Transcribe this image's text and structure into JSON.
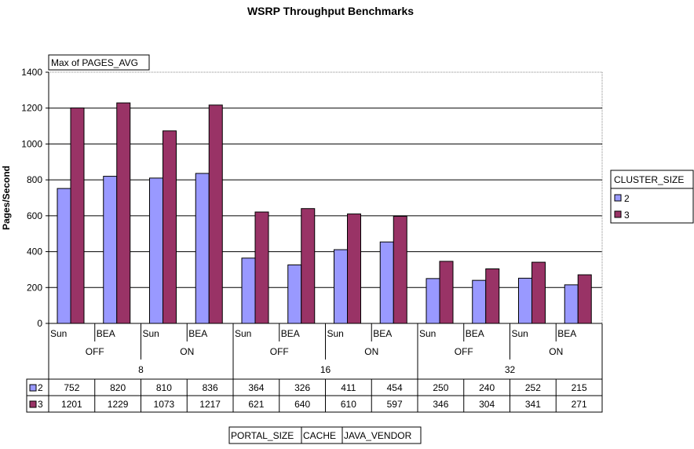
{
  "chart_data": {
    "type": "bar",
    "title": "WSRP Throughput Benchmarks",
    "ylabel": "Pages/Second",
    "data_field_label": "Max of PAGES_AVG",
    "ylim": [
      0,
      1400
    ],
    "yticks": [
      0,
      200,
      400,
      600,
      800,
      1000,
      1200,
      1400
    ],
    "grid": true,
    "legend_title": "CLUSTER_SIZE",
    "legend_position": "right",
    "categories": {
      "portal_size": [
        "8",
        "16",
        "32"
      ],
      "cache": [
        "OFF",
        "ON"
      ],
      "java_vendor": [
        "Sun",
        "BEA"
      ]
    },
    "axis_fields": [
      "PORTAL_SIZE",
      "CACHE",
      "JAVA_VENDOR"
    ],
    "series": [
      {
        "name": "2",
        "color": "#9999FF",
        "values": [
          752,
          820,
          810,
          836,
          364,
          326,
          411,
          454,
          250,
          240,
          252,
          215
        ]
      },
      {
        "name": "3",
        "color": "#993366",
        "values": [
          1201,
          1229,
          1073,
          1217,
          621,
          640,
          610,
          597,
          346,
          304,
          341,
          271
        ]
      }
    ]
  }
}
